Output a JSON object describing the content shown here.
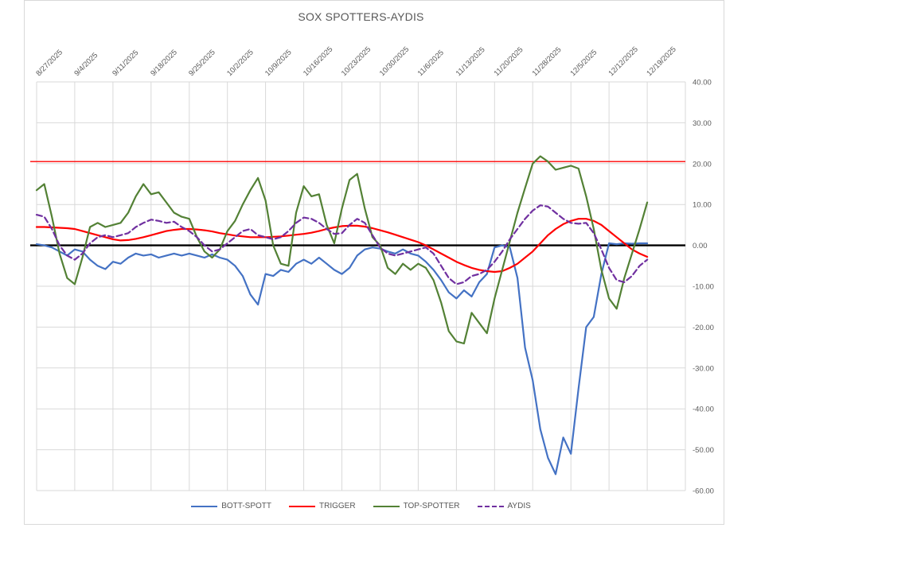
{
  "chart_data": {
    "type": "line",
    "title": "SOX SPOTTERS-AYDIS",
    "categories": [
      "8/27/2025",
      "9/4/2025",
      "9/11/2025",
      "9/18/2025",
      "9/25/2025",
      "10/2/2025",
      "10/9/2025",
      "10/16/2025",
      "10/23/2025",
      "10/30/2025",
      "11/6/2025",
      "11/13/2025",
      "11/20/2025",
      "11/28/2025",
      "12/5/2025",
      "12/12/2025",
      "12/19/2025"
    ],
    "points_per_label_interval": 5,
    "x_labels_rotation_deg": 45,
    "grid": true,
    "legend_position": "bottom",
    "y_axis": {
      "min": -60,
      "max": 40,
      "step": 10,
      "side": "right",
      "ticks": [
        {
          "value": 40,
          "label": "40.00"
        },
        {
          "value": 30,
          "label": "30.00"
        },
        {
          "value": 20,
          "label": "20.00"
        },
        {
          "value": 10,
          "label": "10.00"
        },
        {
          "value": 0,
          "label": "0.00"
        },
        {
          "value": -10,
          "label": "-10.00"
        },
        {
          "value": -20,
          "label": "-20.00"
        },
        {
          "value": -30,
          "label": "-30.00"
        },
        {
          "value": -40,
          "label": "-40.00"
        },
        {
          "value": -50,
          "label": "-50.00"
        },
        {
          "value": -60,
          "label": "-60.00"
        }
      ]
    },
    "reference_lines": [
      {
        "name": "upper-threshold-line",
        "value": 20.5,
        "color": "#FF0000",
        "width": 1.4
      },
      {
        "name": "zero-axis-line",
        "value": 0,
        "color": "#000000",
        "width": 2.4
      }
    ],
    "series": [
      {
        "name": "BOTT-SPOTT",
        "color": "#4472C4",
        "dash": null,
        "values": [
          0.3,
          0,
          -0.5,
          -1.5,
          -2.5,
          -1,
          -1.5,
          -3.5,
          -5,
          -5.8,
          -4,
          -4.5,
          -3,
          -2,
          -2.5,
          -2.2,
          -3,
          -2.5,
          -2,
          -2.5,
          -2,
          -2.5,
          -3,
          -2.2,
          -3,
          -3.5,
          -5,
          -7.5,
          -12,
          -14.5,
          -7,
          -7.5,
          -6,
          -6.5,
          -4.5,
          -3.5,
          -4.5,
          -3,
          -4.5,
          -6,
          -7,
          -5.5,
          -2.5,
          -1,
          -0.5,
          -0.8,
          -1.5,
          -2,
          -1,
          -2,
          -2.5,
          -4,
          -6,
          -8.5,
          -11.5,
          -13,
          -11,
          -12.5,
          -9,
          -7,
          -0.5,
          0,
          -0.5,
          -8,
          -25,
          -33,
          -45,
          -52,
          -56,
          -47,
          -51,
          -35,
          -20,
          -17.5,
          -7,
          0.5,
          0.3,
          0.5,
          0.4,
          0.5,
          0.5
        ]
      },
      {
        "name": "TRIGGER",
        "color": "#FF0000",
        "dash": null,
        "values": [
          4.5,
          4.5,
          4.4,
          4.3,
          4.2,
          4,
          3.5,
          3,
          2.5,
          2,
          1.5,
          1.2,
          1.3,
          1.6,
          2,
          2.5,
          3,
          3.5,
          3.8,
          4,
          4,
          3.9,
          3.7,
          3.4,
          3,
          2.7,
          2.4,
          2.2,
          2,
          2,
          2,
          2.1,
          2.2,
          2.4,
          2.6,
          2.8,
          3.1,
          3.5,
          4,
          4.4,
          4.7,
          4.8,
          4.8,
          4.6,
          4.2,
          3.7,
          3.2,
          2.6,
          2,
          1.4,
          0.8,
          0,
          -1,
          -2,
          -3,
          -4,
          -4.8,
          -5.5,
          -6,
          -6.3,
          -6.5,
          -6.3,
          -5.5,
          -4.5,
          -3,
          -1.5,
          0.5,
          2.5,
          4,
          5.2,
          6,
          6.5,
          6.5,
          6,
          5,
          3.5,
          2,
          0.5,
          -1,
          -2,
          -2.8
        ]
      },
      {
        "name": "TOP-SPOTTER",
        "color": "#538135",
        "dash": null,
        "values": [
          13.5,
          15,
          7,
          -2,
          -8,
          -9.5,
          -3,
          4.5,
          5.5,
          4.5,
          5,
          5.5,
          8,
          12,
          15,
          12.5,
          13,
          10.5,
          8,
          7,
          6.5,
          2,
          -1.5,
          -3,
          -1,
          3.5,
          6,
          10,
          13.5,
          16.5,
          11,
          0,
          -4.5,
          -5,
          8,
          14.5,
          12,
          12.5,
          5,
          0.5,
          9,
          16,
          17.5,
          9,
          2,
          0,
          -5.5,
          -7,
          -4.5,
          -6,
          -4.5,
          -5.5,
          -8.5,
          -14,
          -21,
          -23.5,
          -24,
          -16.5,
          -19,
          -21.5,
          -13,
          -6,
          1,
          8,
          14,
          20,
          21.8,
          20.5,
          18.5,
          19,
          19.5,
          18.8,
          12,
          4,
          -6,
          -13,
          -15.5,
          -8,
          -2,
          4,
          10.5
        ]
      },
      {
        "name": "AYDIS",
        "color": "#7030A0",
        "dash": "7 4",
        "values": [
          7.5,
          7,
          4,
          0,
          -2.5,
          -3.5,
          -2,
          0.5,
          2,
          2.5,
          2,
          2.5,
          3,
          4.5,
          5.5,
          6.3,
          6,
          5.5,
          5.8,
          4.5,
          3.5,
          2,
          0,
          -1.5,
          -1,
          0.5,
          2,
          3.5,
          4,
          2.5,
          2,
          1.5,
          2,
          3.5,
          5.5,
          6.8,
          6.5,
          5.5,
          4,
          2.8,
          3,
          5,
          6.5,
          5.5,
          2.5,
          -0.5,
          -2,
          -2.5,
          -2,
          -1.5,
          -1,
          -0.5,
          -2,
          -5,
          -8,
          -9.5,
          -9,
          -7.5,
          -7,
          -6,
          -4,
          -1.5,
          1.5,
          4,
          6.5,
          8.5,
          9.8,
          9.5,
          8,
          6.5,
          5.5,
          5.3,
          5.5,
          3,
          -1,
          -5.5,
          -8.5,
          -9,
          -7.5,
          -5,
          -3.5
        ]
      }
    ],
    "colors": {
      "grid": "#D9D9D9",
      "axis_text": "#595959",
      "title_text": "#595959",
      "background": "#FFFFFF",
      "chart_border": "#D9D9D9"
    }
  }
}
